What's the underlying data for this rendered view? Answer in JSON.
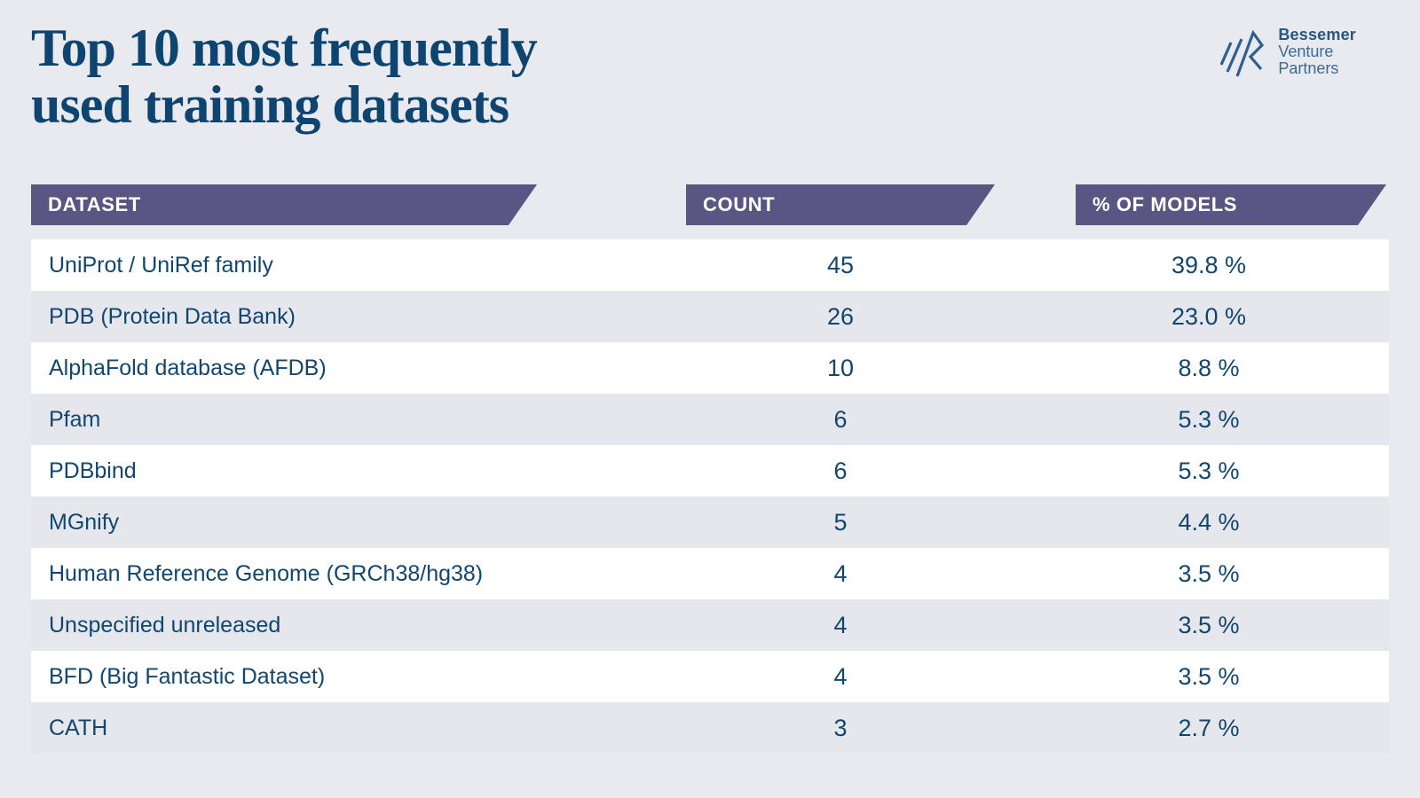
{
  "page": {
    "background": "#e8eaef",
    "accent_purple": "#5b5583",
    "text_navy": "#10466f"
  },
  "title": {
    "line1": "Top 10 most frequently",
    "line2": "used training datasets"
  },
  "logo": {
    "name": "Bessemer Venture Partners",
    "line1": "Bessemer",
    "line2": "Venture",
    "line3": "Partners"
  },
  "table": {
    "headers": {
      "dataset": "DATASET",
      "count": "COUNT",
      "pct": "% OF MODELS"
    },
    "rows": [
      {
        "dataset": "UniProt / UniRef family",
        "count": "45",
        "pct": "39.8 %"
      },
      {
        "dataset": "PDB (Protein Data Bank)",
        "count": "26",
        "pct": "23.0 %"
      },
      {
        "dataset": "AlphaFold database (AFDB)",
        "count": "10",
        "pct": "8.8 %"
      },
      {
        "dataset": "Pfam",
        "count": "6",
        "pct": "5.3 %"
      },
      {
        "dataset": "PDBbind",
        "count": "6",
        "pct": "5.3 %"
      },
      {
        "dataset": "MGnify",
        "count": "5",
        "pct": "4.4 %"
      },
      {
        "dataset": "Human Reference Genome (GRCh38/hg38)",
        "count": "4",
        "pct": "3.5 %"
      },
      {
        "dataset": "Unspecified unreleased",
        "count": "4",
        "pct": "3.5 %"
      },
      {
        "dataset": "BFD (Big Fantastic Dataset)",
        "count": "4",
        "pct": "3.5 %"
      },
      {
        "dataset": "CATH",
        "count": "3",
        "pct": "2.7 %"
      }
    ]
  },
  "chart_data": {
    "type": "table",
    "title": "Top 10 most frequently used training datasets",
    "columns": [
      "DATASET",
      "COUNT",
      "% OF MODELS"
    ],
    "categories": [
      "UniProt / UniRef family",
      "PDB (Protein Data Bank)",
      "AlphaFold database (AFDB)",
      "Pfam",
      "PDBbind",
      "MGnify",
      "Human Reference Genome (GRCh38/hg38)",
      "Unspecified unreleased",
      "BFD (Big Fantastic Dataset)",
      "CATH"
    ],
    "series": [
      {
        "name": "Count",
        "values": [
          45,
          26,
          10,
          6,
          6,
          5,
          4,
          4,
          4,
          3
        ]
      },
      {
        "name": "% of models",
        "values": [
          39.8,
          23.0,
          8.8,
          5.3,
          5.3,
          4.4,
          3.5,
          3.5,
          3.5,
          2.7
        ]
      }
    ]
  }
}
